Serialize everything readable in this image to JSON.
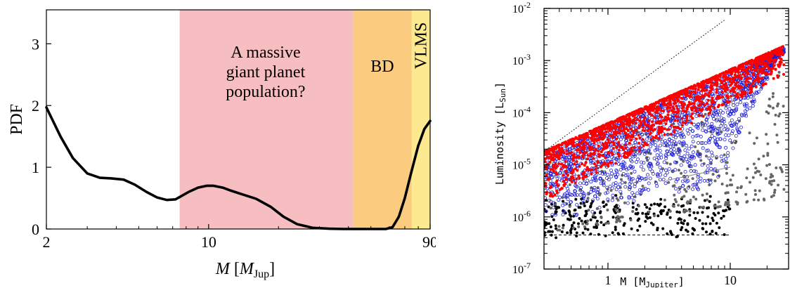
{
  "chart_data": [
    {
      "type": "line",
      "title": "",
      "xlabel_main": "M",
      "xlabel_unit_open": " [",
      "xlabel_unit_base": "M",
      "xlabel_unit_sub": "Jup",
      "xlabel_unit_close": "]",
      "ylabel": "PDF",
      "xscale": "log",
      "xlim": [
        2,
        90
      ],
      "ylim": [
        0,
        3.55
      ],
      "xticks": [
        {
          "value": 2,
          "label": "2"
        },
        {
          "value": 10,
          "label": "10"
        },
        {
          "value": 90,
          "label": "90"
        }
      ],
      "yticks": [
        {
          "value": 0,
          "label": "0"
        },
        {
          "value": 1,
          "label": "1"
        },
        {
          "value": 2,
          "label": "2"
        },
        {
          "value": 3,
          "label": "3"
        }
      ],
      "regions": [
        {
          "name": "A massive giant planet population?",
          "lines": [
            "A massive",
            "giant planet",
            "population?"
          ],
          "from": 7.5,
          "to": 42,
          "color": "#f6bec1"
        },
        {
          "name": "BD",
          "lines": [
            "BD"
          ],
          "from": 42,
          "to": 75,
          "color": "#fbcb80"
        },
        {
          "name": "VLMS",
          "lines": [
            "VLMS"
          ],
          "from": 75,
          "to": 90,
          "color": "#fde990"
        }
      ],
      "series": [
        {
          "color": "#000000",
          "x": [
            2.0,
            2.3,
            2.6,
            3.0,
            3.4,
            3.8,
            4.3,
            4.8,
            5.4,
            6.0,
            6.6,
            7.2,
            7.6,
            8.2,
            9.0,
            9.8,
            10.5,
            11.5,
            12.5,
            14.0,
            16.0,
            18.5,
            21.0,
            24.0,
            28.0,
            33.0,
            38.0,
            42.0,
            48.0,
            55.0,
            58.0,
            62.0,
            66.0,
            70.0,
            75.0,
            80.0,
            85.0,
            90.0
          ],
          "y": [
            1.97,
            1.5,
            1.15,
            0.9,
            0.83,
            0.82,
            0.8,
            0.72,
            0.6,
            0.51,
            0.47,
            0.48,
            0.53,
            0.6,
            0.67,
            0.7,
            0.7,
            0.67,
            0.62,
            0.56,
            0.49,
            0.36,
            0.2,
            0.08,
            0.02,
            0.005,
            0.0,
            0.0,
            0.0,
            0.0,
            0.0,
            0.03,
            0.2,
            0.5,
            0.95,
            1.35,
            1.62,
            1.75
          ]
        }
      ]
    },
    {
      "type": "scatter",
      "title": "",
      "xlabel": "M [M",
      "xlabel_sub": "Jupiter",
      "xlabel_close": "]",
      "ylabel": "Luminosity [L",
      "ylabel_sub": "Sun",
      "ylabel_close": "]",
      "xscale": "log",
      "yscale": "log",
      "xlim": [
        0.3,
        30
      ],
      "ylim": [
        1e-07,
        0.01
      ],
      "xticks": [
        {
          "value": 1,
          "label": "1"
        },
        {
          "value": 10,
          "label": "10"
        }
      ],
      "yticks": [
        {
          "value": 1e-07,
          "base": "10",
          "exp": "-7"
        },
        {
          "value": 1e-06,
          "base": "10",
          "exp": "-6"
        },
        {
          "value": 1e-05,
          "base": "10",
          "exp": "-5"
        },
        {
          "value": 0.0001,
          "base": "10",
          "exp": "-4"
        },
        {
          "value": 0.001,
          "base": "10",
          "exp": "-3"
        },
        {
          "value": 0.01,
          "base": "10",
          "exp": "-2"
        }
      ],
      "reference_lines": [
        {
          "style": "dotted",
          "x": [
            0.3,
            9
          ],
          "y": [
            1.8e-05,
            0.006
          ]
        },
        {
          "style": "solid",
          "x": [
            3,
            10
          ],
          "y": [
            5e-06,
            9e-06
          ]
        },
        {
          "style": "dashed",
          "x": [
            0.3,
            10
          ],
          "y": [
            4.5e-07,
            4.5e-07
          ]
        }
      ],
      "series": [
        {
          "color": "#000000",
          "marker": "filled",
          "count": 260,
          "x_range": [
            0.3,
            10
          ],
          "y_range": [
            4.5e-07,
            2.5e-06
          ]
        },
        {
          "color": "#666666",
          "marker": "filled",
          "count": 300,
          "x_range": [
            0.3,
            28
          ],
          "y_range": [
            5e-07,
            0.005
          ]
        },
        {
          "color": "#1f1fd6",
          "marker": "open",
          "count": 1700,
          "x_range": [
            0.3,
            28
          ],
          "y_range": [
            1e-06,
            0.006
          ]
        },
        {
          "color": "#ff0000",
          "marker": "filled",
          "count": 1500,
          "x_range": [
            0.3,
            28
          ],
          "y_range": [
            5e-06,
            0.008
          ]
        }
      ]
    }
  ]
}
